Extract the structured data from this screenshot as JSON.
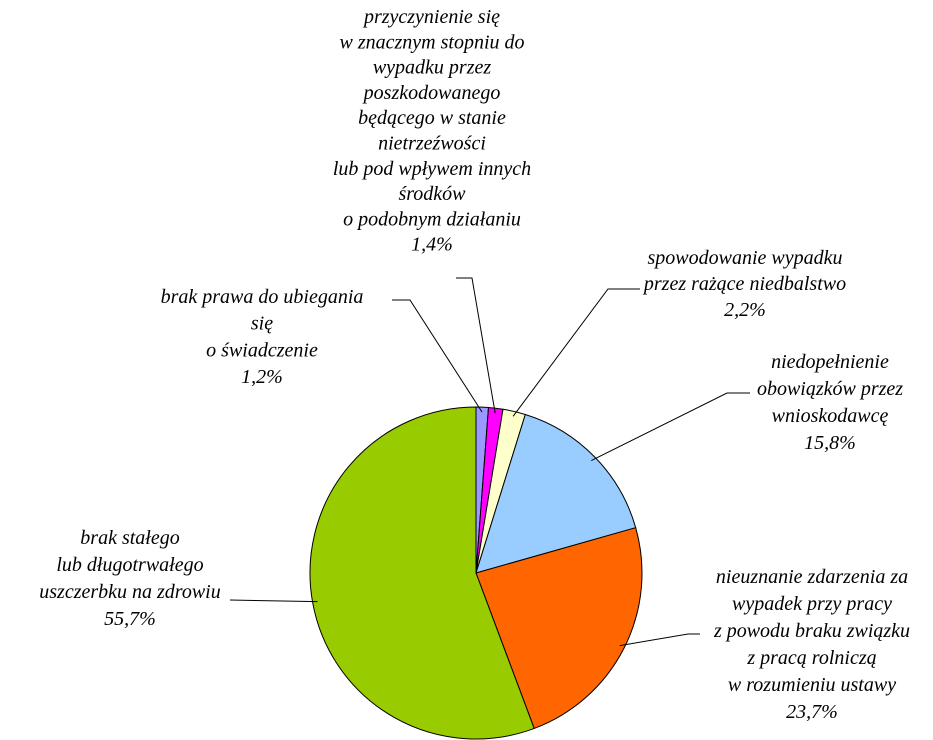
{
  "chart_data": {
    "type": "pie",
    "categories": [
      [
        "brak prawa do ubiegania",
        "się",
        "o świadczenie"
      ],
      [
        "przyczynienie się",
        "w znacznym stopniu do",
        "wypadku przez",
        "poszkodowanego",
        "będącego w stanie",
        "nietrzeźwości",
        "lub pod wpływem  innych",
        "środków",
        "o podobnym działaniu"
      ],
      [
        "spowodowanie wypadku",
        "przez rażące niedbalstwo"
      ],
      [
        "niedopełnienie",
        "obowiązków przez",
        "wnioskodawcę"
      ],
      [
        "nieuznanie zdarzenia za",
        "wypadek przy pracy",
        "z powodu braku związku",
        "z pracą rolniczą",
        "w rozumieniu ustawy"
      ],
      [
        "brak stałego",
        "lub długotrwałego",
        "uszczerbku na zdrowiu"
      ]
    ],
    "values": [
      1.2,
      1.4,
      2.2,
      15.8,
      23.7,
      55.7
    ],
    "value_labels": [
      "1,2%",
      "1,4%",
      "2,2%",
      "15,8%",
      "23,7%",
      "55,7%"
    ],
    "colors": [
      "#9999ff",
      "#ff00ff",
      "#ffffcc",
      "#99ccff",
      "#ff6600",
      "#99cc00"
    ]
  }
}
